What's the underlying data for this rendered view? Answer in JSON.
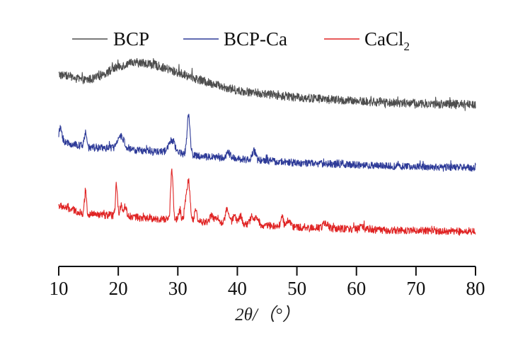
{
  "chart_data": {
    "type": "line",
    "title": "",
    "xlabel": "2θ/（°）",
    "ylabel": "",
    "xlim": [
      10,
      80
    ],
    "ylim": [
      0,
      100
    ],
    "y_axis_visible": false,
    "grid": false,
    "legend": {
      "placement": "top",
      "orientation": "horizontal"
    },
    "x_ticks": [
      10,
      20,
      30,
      40,
      50,
      60,
      70,
      80
    ],
    "x_tick_labels": [
      "10",
      "20",
      "30",
      "40",
      "50",
      "60",
      "70",
      "80"
    ],
    "series": [
      {
        "name": "BCP",
        "legend_label": "BCP",
        "color": "#4d4d4d",
        "noise": 2.2,
        "x": [
          10,
          12,
          14,
          16,
          18,
          20,
          22,
          23,
          25,
          27,
          30,
          35,
          40,
          45,
          50,
          55,
          60,
          65,
          70,
          75,
          80
        ],
        "y": [
          91,
          90,
          88,
          89,
          92,
          95,
          96.5,
          97,
          96.5,
          95,
          92,
          87,
          83,
          81,
          79.5,
          78.5,
          77.5,
          77,
          76.5,
          76,
          76
        ],
        "peaks": []
      },
      {
        "name": "BCP-Ca",
        "legend_label": "BCP-Ca",
        "color": "#2e3b98",
        "noise": 1.8,
        "x": [
          10,
          12,
          14,
          16,
          18,
          20,
          22,
          25,
          28,
          30,
          33,
          35,
          40,
          45,
          50,
          55,
          60,
          65,
          70,
          75,
          80
        ],
        "y": [
          58,
          56,
          55,
          54,
          54,
          54,
          53,
          52.5,
          52,
          51.5,
          50,
          49.5,
          48.5,
          47.5,
          46.5,
          46,
          45.5,
          45,
          44.5,
          44.3,
          44
        ],
        "peaks": [
          {
            "x": 10.3,
            "height": 6,
            "width": 0.25
          },
          {
            "x": 14.5,
            "height": 7,
            "width": 0.2
          },
          {
            "x": 20.5,
            "height": 6,
            "width": 0.5
          },
          {
            "x": 29.0,
            "height": 6,
            "width": 0.5
          },
          {
            "x": 31.8,
            "height": 20,
            "width": 0.25
          },
          {
            "x": 38.5,
            "height": 2.5,
            "width": 0.4
          },
          {
            "x": 42.8,
            "height": 4.5,
            "width": 0.3
          }
        ]
      },
      {
        "name": "CaCl2",
        "legend_label": "CaCl",
        "legend_subscript": "2",
        "color": "#e02424",
        "noise": 1.8,
        "x": [
          10,
          12,
          14,
          16,
          18,
          20,
          22,
          25,
          28,
          30,
          33,
          35,
          40,
          45,
          50,
          55,
          60,
          65,
          70,
          75,
          80
        ],
        "y": [
          25,
          23,
          21,
          20.5,
          20,
          20,
          19.5,
          18.5,
          18,
          17.5,
          17,
          16.5,
          16,
          15,
          14,
          13.5,
          13,
          12.5,
          12.5,
          12,
          12
        ],
        "peaks": [
          {
            "x": 14.5,
            "height": 12,
            "width": 0.15
          },
          {
            "x": 19.7,
            "height": 16,
            "width": 0.15
          },
          {
            "x": 20.5,
            "height": 6,
            "width": 0.2
          },
          {
            "x": 21.2,
            "height": 5,
            "width": 0.2
          },
          {
            "x": 29.0,
            "height": 25,
            "width": 0.2
          },
          {
            "x": 30.3,
            "height": 5,
            "width": 0.2
          },
          {
            "x": 31.3,
            "height": 8,
            "width": 0.2
          },
          {
            "x": 31.8,
            "height": 20,
            "width": 0.25
          },
          {
            "x": 33.0,
            "height": 6,
            "width": 0.2
          },
          {
            "x": 35.7,
            "height": 4,
            "width": 0.25
          },
          {
            "x": 36.6,
            "height": 3,
            "width": 0.25
          },
          {
            "x": 38.3,
            "height": 7,
            "width": 0.3
          },
          {
            "x": 39.5,
            "height": 4,
            "width": 0.25
          },
          {
            "x": 40.5,
            "height": 4,
            "width": 0.25
          },
          {
            "x": 42.5,
            "height": 4,
            "width": 0.3
          },
          {
            "x": 43.3,
            "height": 4,
            "width": 0.25
          },
          {
            "x": 47.5,
            "height": 5,
            "width": 0.2
          },
          {
            "x": 48.6,
            "height": 3.5,
            "width": 0.3
          },
          {
            "x": 54.8,
            "height": 2.5,
            "width": 0.4
          },
          {
            "x": 61.0,
            "height": 1.5,
            "width": 0.5
          }
        ]
      }
    ]
  }
}
